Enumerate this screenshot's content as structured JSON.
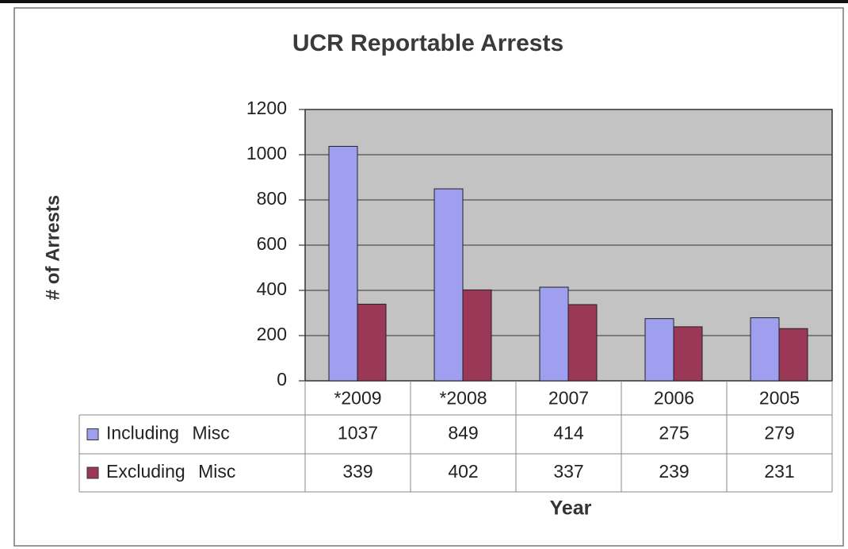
{
  "chart_data": {
    "type": "bar",
    "title": "UCR Reportable Arrests",
    "y_label": "# of Arrests",
    "x_label": "Year",
    "categories": [
      "*2009",
      "*2008",
      "2007",
      "2006",
      "2005"
    ],
    "series": [
      {
        "name": "Including Misc",
        "color": "#9f9ff0",
        "values": [
          1037,
          849,
          414,
          275,
          279
        ]
      },
      {
        "name": "Excluding Misc",
        "color": "#9b3858",
        "values": [
          339,
          402,
          337,
          239,
          231
        ]
      }
    ],
    "ylim": [
      0,
      1200
    ],
    "yticks": [
      0,
      200,
      400,
      600,
      800,
      1000,
      1200
    ],
    "grid": true
  }
}
